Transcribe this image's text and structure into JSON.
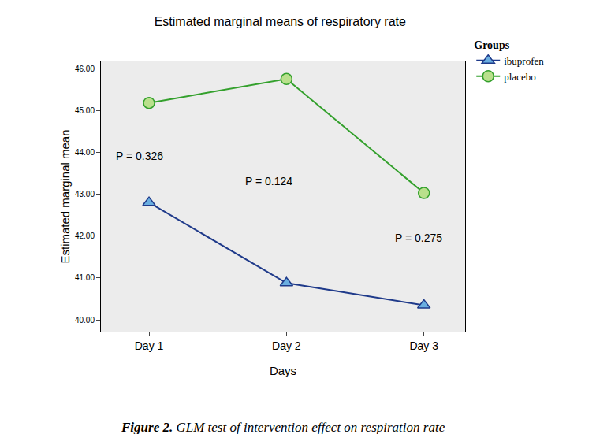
{
  "chart_data": {
    "type": "line",
    "title": "Estimated marginal means of respiratory rate",
    "x_label": "Days",
    "y_label": "Estimated marginal mean",
    "legend_title": "Groups",
    "legend": "top right",
    "caption_label": "Figure 2.",
    "caption": "GLM test of intervention effect on respiration rate",
    "categories": [
      "Day 1",
      "Day 2",
      "Day 3"
    ],
    "series": [
      {
        "name": "ibuprofen",
        "color": "#1f3a8a",
        "marker": "triangle-up",
        "line_style": "solid",
        "values": [
          42.8,
          40.88,
          40.35
        ]
      },
      {
        "name": "placebo",
        "color": "#33a02c",
        "marker": "circle",
        "line_style": "solid",
        "values": [
          45.18,
          45.75,
          43.03
        ]
      }
    ],
    "ylim": [
      39.72,
      46.17
    ],
    "yticks": [
      {
        "value": 40,
        "label": "40.00"
      },
      {
        "value": 41,
        "label": "41.00"
      },
      {
        "value": 42,
        "label": "42.00"
      },
      {
        "value": 43,
        "label": "43.00"
      },
      {
        "value": 44,
        "label": "44.00"
      },
      {
        "value": 45,
        "label": "45.00"
      },
      {
        "value": 46,
        "label": "46.00"
      }
    ],
    "grid": false,
    "annotations": [
      {
        "text": "P = 0.326",
        "x": -0.07,
        "y": 43.92
      },
      {
        "text": "P = 0.124",
        "x": 0.87,
        "y": 43.32
      },
      {
        "text": "P = 0.275",
        "x": 1.96,
        "y": 41.96
      }
    ]
  }
}
